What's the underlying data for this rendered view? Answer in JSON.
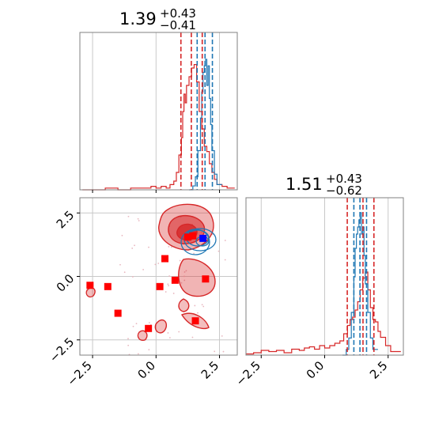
{
  "chart_data": {
    "type": "corner",
    "parameters": [
      {
        "title": {
          "median": "1.39",
          "plus": "+0.43",
          "minus": "−0.41"
        },
        "range": [
          -3.0,
          3.2
        ],
        "ticks": [
          {
            "v": -2.5,
            "label": "−2.5"
          },
          {
            "v": 0.0,
            "label": "0.0"
          },
          {
            "v": 2.5,
            "label": "2.5"
          }
        ],
        "red_quantiles": [
          0.98,
          1.39,
          1.82
        ],
        "blue_quantiles": [
          1.62,
          1.93,
          2.22
        ]
      },
      {
        "title": {
          "median": "1.51",
          "plus": "+0.43",
          "minus": "−0.62"
        },
        "range": [
          -3.1,
          3.1
        ],
        "ticks": [
          {
            "v": -2.5,
            "label": "−2.5"
          },
          {
            "v": 0.0,
            "label": "0.0"
          },
          {
            "v": 2.5,
            "label": "2.5"
          }
        ],
        "red_quantiles": [
          0.89,
          1.51,
          1.94
        ],
        "blue_quantiles": [
          1.15,
          1.39,
          1.65
        ]
      }
    ],
    "series": [
      {
        "color": "#d62728",
        "hist1_x": [
          -2.9,
          -2.5,
          -2.0,
          -1.5,
          -1.0,
          -0.5,
          -0.2,
          0.0,
          0.2,
          0.4,
          0.55,
          0.7,
          0.8,
          0.9,
          1.0,
          1.05,
          1.1,
          1.15,
          1.2,
          1.3,
          1.4,
          1.5,
          1.6,
          1.7,
          1.8,
          1.9,
          2.0,
          2.1,
          2.2,
          2.3,
          2.4,
          2.6,
          2.8,
          3.1
        ],
        "hist1_y": [
          0.0,
          0.0,
          0.01,
          0.0,
          0.01,
          0.01,
          0.02,
          0.01,
          0.02,
          0.01,
          0.03,
          0.05,
          0.1,
          0.2,
          0.3,
          0.45,
          0.55,
          0.5,
          0.6,
          0.65,
          0.7,
          0.72,
          0.62,
          0.45,
          0.35,
          0.25,
          0.22,
          0.15,
          0.1,
          0.06,
          0.03,
          0.02,
          0.01,
          0.0
        ],
        "hist2_x": [
          -3.1,
          -2.8,
          -2.5,
          -2.2,
          -1.9,
          -1.6,
          -1.3,
          -1.0,
          -0.8,
          -0.6,
          -0.4,
          -0.2,
          0.0,
          0.2,
          0.4,
          0.6,
          0.75,
          0.9,
          1.0,
          1.1,
          1.2,
          1.3,
          1.4,
          1.5,
          1.6,
          1.7,
          1.8,
          1.9,
          2.0,
          2.1,
          2.2,
          2.4,
          2.6,
          3.0
        ],
        "hist2_y": [
          0.01,
          0.02,
          0.04,
          0.03,
          0.04,
          0.02,
          0.05,
          0.04,
          0.06,
          0.07,
          0.05,
          0.08,
          0.06,
          0.08,
          0.1,
          0.12,
          0.18,
          0.25,
          0.3,
          0.32,
          0.38,
          0.45,
          0.55,
          0.65,
          0.7,
          0.55,
          0.4,
          0.3,
          0.28,
          0.2,
          0.15,
          0.08,
          0.03,
          0.0
        ],
        "points": [
          [
            -2.6,
            -0.35
          ],
          [
            -1.9,
            -0.4
          ],
          [
            -1.5,
            -1.45
          ],
          [
            -0.3,
            -2.05
          ],
          [
            0.15,
            -0.4
          ],
          [
            0.35,
            0.7
          ],
          [
            0.75,
            -0.15
          ],
          [
            1.25,
            1.55
          ],
          [
            1.45,
            1.6
          ],
          [
            1.55,
            -1.75
          ],
          [
            1.95,
            -0.1
          ]
        ]
      },
      {
        "color": "#1f77b4",
        "hist1_x": [
          1.3,
          1.45,
          1.55,
          1.65,
          1.75,
          1.8,
          1.85,
          1.9,
          1.95,
          2.0,
          2.05,
          2.1,
          2.15,
          2.2,
          2.3,
          2.4,
          2.6
        ],
        "hist1_y": [
          0.0,
          0.03,
          0.1,
          0.3,
          0.55,
          0.75,
          0.9,
          0.95,
          1.0,
          0.8,
          0.95,
          0.7,
          0.5,
          0.3,
          0.12,
          0.04,
          0.0
        ],
        "hist2_x": [
          0.7,
          0.85,
          0.95,
          1.05,
          1.15,
          1.2,
          1.25,
          1.3,
          1.35,
          1.4,
          1.45,
          1.5,
          1.55,
          1.6,
          1.7,
          1.8,
          1.9,
          2.1
        ],
        "hist2_y": [
          0.0,
          0.04,
          0.12,
          0.3,
          0.55,
          0.75,
          0.85,
          0.9,
          0.95,
          1.0,
          0.85,
          0.9,
          0.7,
          0.5,
          0.3,
          0.12,
          0.04,
          0.0
        ],
        "points": [
          [
            1.85,
            1.5
          ]
        ]
      }
    ]
  }
}
